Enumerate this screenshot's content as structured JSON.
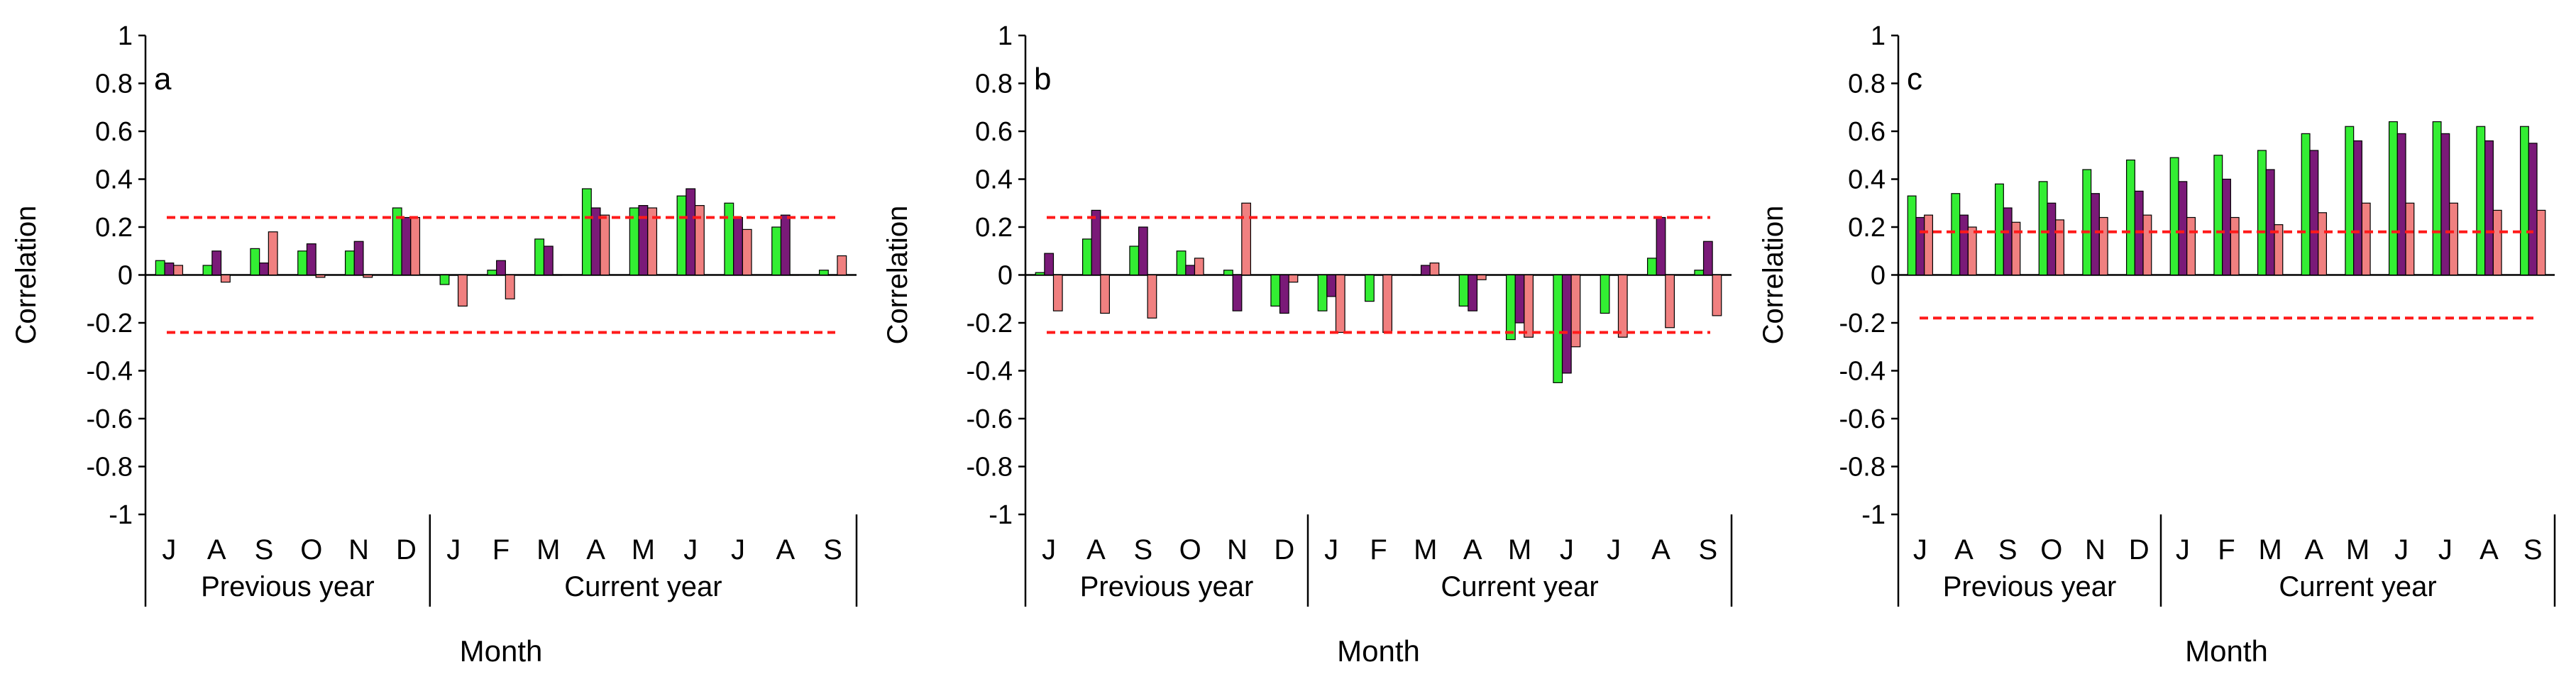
{
  "chart_data": [
    {
      "type": "bar",
      "panel_label": "a",
      "ylabel": "Correlation",
      "xlabel": "Month",
      "ylim": [
        -1,
        1
      ],
      "yticks": [
        1,
        0.8,
        0.6,
        0.4,
        0.2,
        0,
        -0.2,
        -0.4,
        -0.6,
        -0.8,
        -1
      ],
      "ytick_labels": [
        "1",
        "0.8",
        "0.6",
        "0.4",
        "0.2",
        "0",
        "-0.2",
        "-0.4",
        "-0.6",
        "-0.8",
        "-1"
      ],
      "categories": [
        "J",
        "A",
        "S",
        "O",
        "N",
        "D",
        "J",
        "F",
        "M",
        "A",
        "M",
        "J",
        "J",
        "A",
        "S"
      ],
      "groups": [
        {
          "label": "Previous year",
          "count": 6
        },
        {
          "label": "Current year",
          "count": 9
        }
      ],
      "significance_lines": [
        0.24,
        -0.24
      ],
      "series": [
        {
          "color": "#33ee33",
          "values": [
            0.06,
            0.04,
            0.11,
            0.1,
            0.1,
            0.28,
            -0.04,
            0.02,
            0.15,
            0.36,
            0.28,
            0.33,
            0.3,
            0.2,
            0.02
          ]
        },
        {
          "color": "#7a1a78",
          "values": [
            0.05,
            0.1,
            0.05,
            0.13,
            0.14,
            0.24,
            0.0,
            0.06,
            0.12,
            0.28,
            0.29,
            0.36,
            0.24,
            0.25,
            0.0
          ]
        },
        {
          "color": "#f08080",
          "values": [
            0.04,
            -0.03,
            0.18,
            -0.01,
            -0.01,
            0.24,
            -0.13,
            -0.1,
            0.0,
            0.25,
            0.28,
            0.29,
            0.19,
            0.0,
            0.08
          ]
        }
      ],
      "grid": false,
      "legend": "none"
    },
    {
      "type": "bar",
      "panel_label": "b",
      "ylabel": "Correlation",
      "xlabel": "Month",
      "ylim": [
        -1,
        1
      ],
      "yticks": [
        1,
        0.8,
        0.6,
        0.4,
        0.2,
        0,
        -0.2,
        -0.4,
        -0.6,
        -0.8,
        -1
      ],
      "ytick_labels": [
        "1",
        "0.8",
        "0.6",
        "0.4",
        "0.2",
        "0",
        "-0.2",
        "-0.4",
        "-0.6",
        "-0.8",
        "-1"
      ],
      "categories": [
        "J",
        "A",
        "S",
        "O",
        "N",
        "D",
        "J",
        "F",
        "M",
        "A",
        "M",
        "J",
        "J",
        "A",
        "S"
      ],
      "groups": [
        {
          "label": "Previous year",
          "count": 6
        },
        {
          "label": "Current year",
          "count": 9
        }
      ],
      "significance_lines": [
        0.24,
        -0.24
      ],
      "series": [
        {
          "color": "#33ee33",
          "values": [
            0.01,
            0.15,
            0.12,
            0.1,
            0.02,
            -0.13,
            -0.15,
            -0.11,
            0.0,
            -0.13,
            -0.27,
            -0.45,
            -0.16,
            0.07,
            0.02
          ]
        },
        {
          "color": "#7a1a78",
          "values": [
            0.09,
            0.27,
            0.2,
            0.04,
            -0.15,
            -0.16,
            -0.09,
            0.0,
            0.04,
            -0.15,
            -0.2,
            -0.41,
            0.0,
            0.24,
            0.14
          ]
        },
        {
          "color": "#f08080",
          "values": [
            -0.15,
            -0.16,
            -0.18,
            0.07,
            0.3,
            -0.03,
            -0.24,
            -0.24,
            0.05,
            -0.02,
            -0.26,
            -0.3,
            -0.26,
            -0.22,
            -0.17
          ]
        }
      ],
      "grid": false,
      "legend": "none"
    },
    {
      "type": "bar",
      "panel_label": "c",
      "ylabel": "Correlation",
      "xlabel": "Month",
      "ylim": [
        -1,
        1
      ],
      "yticks": [
        1,
        0.8,
        0.6,
        0.4,
        0.2,
        0,
        -0.2,
        -0.4,
        -0.6,
        -0.8,
        -1
      ],
      "ytick_labels": [
        "1",
        "0.8",
        "0.6",
        "0.4",
        "0.2",
        "0",
        "-0.2",
        "-0.4",
        "-0.6",
        "-0.8",
        "-1"
      ],
      "categories": [
        "J",
        "A",
        "S",
        "O",
        "N",
        "D",
        "J",
        "F",
        "M",
        "A",
        "M",
        "J",
        "J",
        "A",
        "S"
      ],
      "groups": [
        {
          "label": "Previous year",
          "count": 6
        },
        {
          "label": "Current year",
          "count": 9
        }
      ],
      "significance_lines": [
        0.18,
        -0.18
      ],
      "series": [
        {
          "color": "#33ee33",
          "values": [
            0.33,
            0.34,
            0.38,
            0.39,
            0.44,
            0.48,
            0.49,
            0.5,
            0.52,
            0.59,
            0.62,
            0.64,
            0.64,
            0.62,
            0.62
          ]
        },
        {
          "color": "#7a1a78",
          "values": [
            0.24,
            0.25,
            0.28,
            0.3,
            0.34,
            0.35,
            0.39,
            0.4,
            0.44,
            0.52,
            0.56,
            0.59,
            0.59,
            0.56,
            0.55
          ]
        },
        {
          "color": "#f08080",
          "values": [
            0.25,
            0.2,
            0.22,
            0.23,
            0.24,
            0.25,
            0.24,
            0.24,
            0.21,
            0.26,
            0.3,
            0.3,
            0.3,
            0.27,
            0.27
          ]
        }
      ],
      "grid": false,
      "legend": "none"
    }
  ]
}
